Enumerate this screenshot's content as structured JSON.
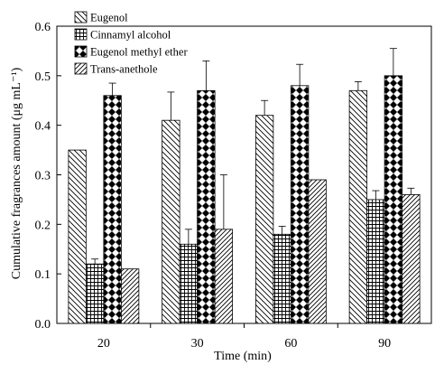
{
  "chart_data": {
    "type": "bar",
    "categories": [
      "20",
      "30",
      "60",
      "90"
    ],
    "series": [
      {
        "name": "Eugenol",
        "values": [
          0.35,
          0.41,
          0.42,
          0.47
        ],
        "errors": [
          0.0,
          0.057,
          0.03,
          0.018
        ],
        "pattern": "diag-back"
      },
      {
        "name": "Cinnamyl alcohol",
        "values": [
          0.12,
          0.16,
          0.18,
          0.25
        ],
        "errors": [
          0.01,
          0.03,
          0.016,
          0.018
        ],
        "pattern": "grid"
      },
      {
        "name": "Eugenol methyl ether",
        "values": [
          0.46,
          0.47,
          0.48,
          0.5
        ],
        "errors": [
          0.025,
          0.06,
          0.043,
          0.055
        ],
        "pattern": "checker"
      },
      {
        "name": "Trans-anethole",
        "values": [
          0.11,
          0.19,
          0.29,
          0.26
        ],
        "errors": [
          0.0,
          0.11,
          0.0,
          0.013
        ],
        "pattern": "diag-dense"
      }
    ],
    "xlabel": "Time (min)",
    "ylabel": "Cumulative fragrances amount (μg mL⁻¹)",
    "ylim": [
      0,
      0.6
    ],
    "yticks": [
      "0.0",
      "0.1",
      "0.2",
      "0.3",
      "0.4",
      "0.5",
      "0.6"
    ],
    "grid": false,
    "legend_position": "top-left"
  }
}
